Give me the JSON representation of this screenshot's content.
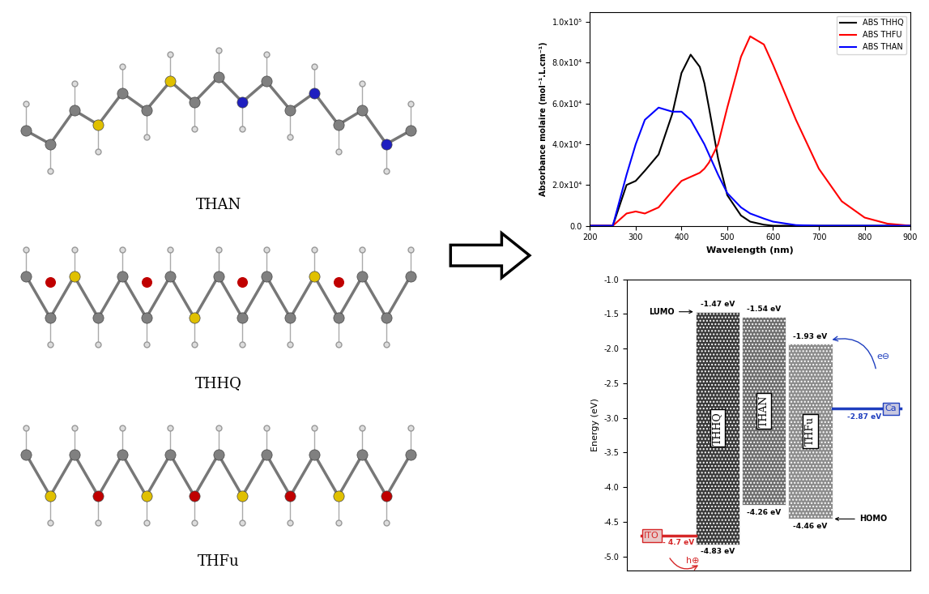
{
  "molecules": [
    {
      "label": "THAN"
    },
    {
      "label": "THHQ"
    },
    {
      "label": "THFu"
    }
  ],
  "chart_data": [
    {
      "type": "line",
      "xlabel": "Wavelength (nm)",
      "ylabel": "Absorbance molaire (mol⁻¹.L.cm⁻¹)",
      "x": [
        200,
        250,
        280,
        300,
        320,
        350,
        380,
        400,
        420,
        440,
        450,
        460,
        480,
        500,
        530,
        550,
        580,
        600,
        650,
        700,
        750,
        800,
        850,
        900
      ],
      "series": [
        {
          "name": "ABS THHQ",
          "color": "#000000",
          "values": [
            0,
            0,
            20000,
            22000,
            27000,
            35000,
            55000,
            75000,
            84000,
            78000,
            70000,
            58000,
            33000,
            15000,
            5000,
            2000,
            500,
            0,
            0,
            0,
            0,
            0,
            0,
            0
          ]
        },
        {
          "name": "ABS THFU",
          "color": "#ff0000",
          "values": [
            0,
            0,
            6000,
            7000,
            6000,
            9000,
            17000,
            22000,
            24000,
            26000,
            28000,
            31000,
            40000,
            58000,
            83000,
            93000,
            89000,
            79000,
            52000,
            28000,
            12000,
            4000,
            1000,
            0
          ]
        },
        {
          "name": "ABS THAN",
          "color": "#0000ff",
          "values": [
            0,
            0,
            25000,
            40000,
            52000,
            58000,
            56000,
            56000,
            52000,
            44000,
            40000,
            35000,
            25000,
            16000,
            9000,
            6000,
            3500,
            2000,
            300,
            0,
            0,
            0,
            0,
            0
          ]
        }
      ],
      "xlim": [
        200,
        900
      ],
      "xticks": [
        200,
        300,
        400,
        500,
        600,
        700,
        800,
        900
      ],
      "ylim": [
        0,
        105000
      ],
      "yticks": [
        {
          "value": 0,
          "label": "0.0"
        },
        {
          "value": 20000,
          "label": "2.0x10⁴"
        },
        {
          "value": 40000,
          "label": "4.0x10⁴"
        },
        {
          "value": 60000,
          "label": "6.0x10⁴"
        },
        {
          "value": 80000,
          "label": "8.0x10⁴"
        },
        {
          "value": 100000,
          "label": "1.0x10⁵"
        }
      ],
      "legend": "upper right"
    },
    {
      "type": "energy_levels",
      "ylabel": "Energy (eV)",
      "ylim": [
        -5.2,
        -1.0
      ],
      "yticks": [
        -1.0,
        -1.5,
        -2.0,
        -2.5,
        -3.0,
        -3.5,
        -4.0,
        -4.5,
        -5.0
      ],
      "tick_labels": "y",
      "levels": [
        {
          "name": "THHQ",
          "color": "#3a3a3a",
          "lumo": -1.47,
          "lumo_label": "-1.47 eV",
          "homo": -4.83,
          "homo_label": "-4.83 eV"
        },
        {
          "name": "THAN",
          "color": "#6e6e6e",
          "lumo": -1.54,
          "lumo_label": "-1.54 eV",
          "homo": -4.26,
          "homo_label": "-4.26 eV"
        },
        {
          "name": "THFu",
          "color": "#8c8c8c",
          "lumo": -1.93,
          "lumo_label": "-1.93 eV",
          "homo": -4.46,
          "homo_label": "-4.46 eV"
        }
      ],
      "electrodes": [
        {
          "name": "ITO",
          "value": -4.7,
          "label": "- 4.7 eV",
          "color": "#d62728"
        },
        {
          "name": "Ca",
          "value": -2.87,
          "label": "-2.87 eV",
          "color": "#1f3fbf"
        }
      ],
      "annotations": {
        "lumo": "LUMO",
        "homo": "HOMO",
        "electron": "e⊖",
        "hole": "h⊕"
      }
    }
  ]
}
